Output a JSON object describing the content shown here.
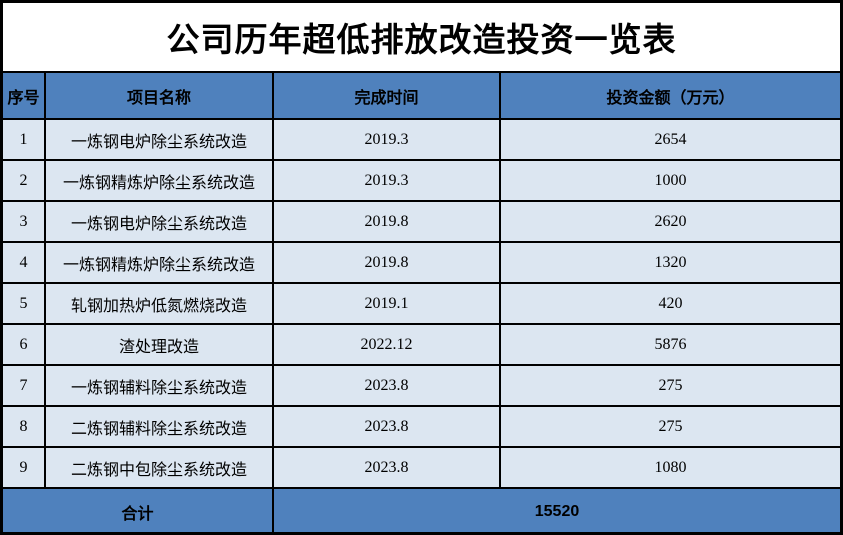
{
  "title": "公司历年超低排放改造投资一览表",
  "columns": {
    "seq": "序号",
    "project": "项目名称",
    "time": "完成时间",
    "amount": "投资金额（万元）"
  },
  "rows": [
    {
      "seq": "1",
      "project": "一炼钢电炉除尘系统改造",
      "time": "2019.3",
      "amount": "2654"
    },
    {
      "seq": "2",
      "project": "一炼钢精炼炉除尘系统改造",
      "time": "2019.3",
      "amount": "1000"
    },
    {
      "seq": "3",
      "project": "一炼钢电炉除尘系统改造",
      "time": "2019.8",
      "amount": "2620"
    },
    {
      "seq": "4",
      "project": "一炼钢精炼炉除尘系统改造",
      "time": "2019.8",
      "amount": "1320"
    },
    {
      "seq": "5",
      "project": "轧钢加热炉低氮燃烧改造",
      "time": "2019.1",
      "amount": "420"
    },
    {
      "seq": "6",
      "project": "渣处理改造",
      "time": "2022.12",
      "amount": "5876"
    },
    {
      "seq": "7",
      "project": "一炼钢辅料除尘系统改造",
      "time": "2023.8",
      "amount": "275"
    },
    {
      "seq": "8",
      "project": "二炼钢辅料除尘系统改造",
      "time": "2023.8",
      "amount": "275"
    },
    {
      "seq": "9",
      "project": "二炼钢中包除尘系统改造",
      "time": "2023.8",
      "amount": "1080"
    }
  ],
  "total": {
    "label": "合计",
    "amount": "15520"
  },
  "colors": {
    "header_blue": "#4f81bd",
    "row_light_blue": "#dce6f1",
    "border_black": "#000000",
    "text_black": "#000000",
    "title_bg_white": "#ffffff"
  }
}
